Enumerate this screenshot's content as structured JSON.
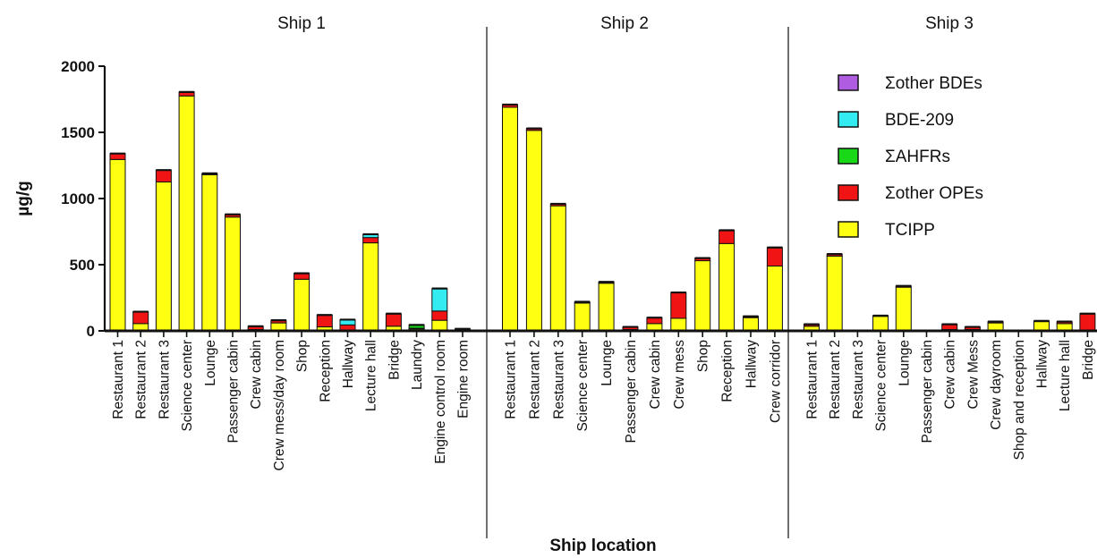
{
  "chart_data": {
    "type": "bar",
    "stacked": true,
    "xlabel": "Ship location",
    "ylabel": "µg/g",
    "ylim": [
      0,
      2000
    ],
    "yticks": [
      0,
      500,
      1000,
      1500,
      2000
    ],
    "legend_position": "top-right",
    "series_order": [
      "TCIPP",
      "Σother OPEs",
      "ΣAHFRs",
      "BDE-209",
      "Σother BDEs"
    ],
    "legend": [
      {
        "name": "Σother BDEs",
        "color": "#b05ce0"
      },
      {
        "name": "BDE-209",
        "color": "#33ecf2"
      },
      {
        "name": "ΣAHFRs",
        "color": "#18d818"
      },
      {
        "name": "Σother OPEs",
        "color": "#f01414"
      },
      {
        "name": "TCIPP",
        "color": "#ffff11"
      }
    ],
    "groups": [
      {
        "title": "Ship 1",
        "categories": [
          {
            "label": "Restaurant 1",
            "values": [
              1295,
              45,
              0,
              0,
              0
            ]
          },
          {
            "label": "Restaurant 2",
            "values": [
              55,
              90,
              0,
              0,
              0
            ]
          },
          {
            "label": "Restaurant 3",
            "values": [
              1125,
              90,
              0,
              0,
              0
            ]
          },
          {
            "label": "Science center",
            "values": [
              1775,
              30,
              0,
              0,
              0
            ]
          },
          {
            "label": "Lounge",
            "values": [
              1180,
              10,
              0,
              0,
              0
            ]
          },
          {
            "label": "Passenger cabin",
            "values": [
              860,
              20,
              0,
              0,
              0
            ]
          },
          {
            "label": "Crew cabin",
            "values": [
              10,
              25,
              0,
              0,
              0
            ]
          },
          {
            "label": "Crew mess/day room",
            "values": [
              60,
              20,
              0,
              0,
              0
            ]
          },
          {
            "label": "Shop",
            "values": [
              390,
              45,
              0,
              0,
              0
            ]
          },
          {
            "label": "Reception",
            "values": [
              30,
              90,
              0,
              0,
              0
            ]
          },
          {
            "label": "Hallway",
            "values": [
              5,
              40,
              0,
              40,
              0
            ]
          },
          {
            "label": "Lecture hall",
            "values": [
              665,
              40,
              0,
              25,
              0
            ]
          },
          {
            "label": "Bridge",
            "values": [
              35,
              95,
              0,
              0,
              0
            ]
          },
          {
            "label": "Laundry",
            "values": [
              15,
              5,
              25,
              0,
              0
            ]
          },
          {
            "label": "Engine control room",
            "values": [
              80,
              70,
              0,
              170,
              0
            ]
          },
          {
            "label": "Engine room",
            "values": [
              5,
              10,
              0,
              0,
              0
            ]
          }
        ]
      },
      {
        "title": "Ship 2",
        "categories": [
          {
            "label": "Restaurant 1",
            "values": [
              1690,
              20,
              0,
              0,
              0
            ]
          },
          {
            "label": "Restaurant 2",
            "values": [
              1515,
              15,
              0,
              0,
              0
            ]
          },
          {
            "label": "Restaurant 3",
            "values": [
              945,
              15,
              0,
              0,
              0
            ]
          },
          {
            "label": "Science center",
            "values": [
              210,
              10,
              0,
              0,
              0
            ]
          },
          {
            "label": "Lounge",
            "values": [
              360,
              10,
              0,
              0,
              0
            ]
          },
          {
            "label": "Passenger cabin",
            "values": [
              10,
              20,
              0,
              0,
              0
            ]
          },
          {
            "label": "Crew cabin",
            "values": [
              55,
              45,
              0,
              0,
              0
            ]
          },
          {
            "label": "Crew mess",
            "values": [
              95,
              195,
              0,
              0,
              0
            ]
          },
          {
            "label": "Shop",
            "values": [
              530,
              20,
              0,
              0,
              0
            ]
          },
          {
            "label": "Reception",
            "values": [
              660,
              100,
              0,
              0,
              0
            ]
          },
          {
            "label": "Hallway",
            "values": [
              100,
              10,
              0,
              0,
              0
            ]
          },
          {
            "label": "Crew corridor",
            "values": [
              490,
              140,
              0,
              0,
              0
            ]
          }
        ]
      },
      {
        "title": "Ship 3",
        "categories": [
          {
            "label": "Restaurant 1",
            "values": [
              35,
              15,
              0,
              0,
              0
            ]
          },
          {
            "label": "Restaurant 2",
            "values": [
              565,
              15,
              0,
              0,
              0
            ]
          },
          {
            "label": "Restaurant 3",
            "values": [
              0,
              0,
              0,
              0,
              0
            ]
          },
          {
            "label": "Science center",
            "values": [
              110,
              5,
              0,
              0,
              0
            ]
          },
          {
            "label": "Lounge",
            "values": [
              330,
              10,
              0,
              0,
              0
            ]
          },
          {
            "label": "Passenger cabin",
            "values": [
              0,
              0,
              0,
              0,
              0
            ]
          },
          {
            "label": "Crew cabin",
            "values": [
              10,
              40,
              0,
              0,
              0
            ]
          },
          {
            "label": "Crew Mess",
            "values": [
              10,
              20,
              0,
              0,
              0
            ]
          },
          {
            "label": "Crew dayroom",
            "values": [
              60,
              10,
              0,
              0,
              0
            ]
          },
          {
            "label": "Shop and reception",
            "values": [
              0,
              0,
              0,
              0,
              0
            ]
          },
          {
            "label": "Hallway",
            "values": [
              70,
              5,
              0,
              0,
              0
            ]
          },
          {
            "label": "Lecture hall",
            "values": [
              55,
              15,
              0,
              0,
              0
            ]
          },
          {
            "label": "Bridge",
            "values": [
              0,
              130,
              0,
              0,
              0
            ]
          }
        ]
      }
    ]
  }
}
